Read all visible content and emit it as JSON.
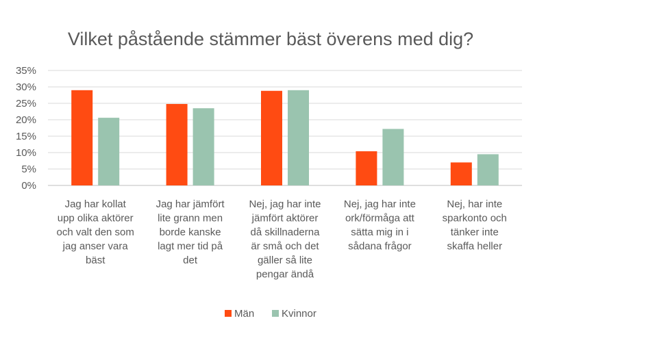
{
  "chart_data": {
    "type": "bar",
    "title": "Vilket påstående stämmer bäst överens med dig?",
    "xlabel": "",
    "ylabel": "",
    "ylim": [
      0,
      35
    ],
    "y_ticks": [
      "0%",
      "5%",
      "10%",
      "15%",
      "20%",
      "25%",
      "30%",
      "35%"
    ],
    "grid": true,
    "legend_position": "bottom",
    "categories": [
      [
        "Jag har kollat",
        "upp olika aktörer",
        "och valt den som",
        "jag anser vara",
        "bäst"
      ],
      [
        "Jag har jämfört",
        "lite grann men",
        "borde kanske",
        "lagt mer tid på",
        "det"
      ],
      [
        "Nej, jag har inte",
        "jämfört aktörer",
        "då skillnaderna",
        "är små och det",
        "gäller så lite",
        "pengar ändå"
      ],
      [
        "Nej, jag har inte",
        "ork/förmåga att",
        "sätta mig in i",
        "sådana frågor"
      ],
      [
        "Nej, har inte",
        "sparkonto och",
        "tänker inte",
        "skaffa heller"
      ]
    ],
    "series": [
      {
        "name": "Män",
        "color": "#FF4B12",
        "values": [
          29,
          24.8,
          28.8,
          10.4,
          7
        ]
      },
      {
        "name": "Kvinnor",
        "color": "#9AC4AF",
        "values": [
          20.6,
          23.5,
          29,
          17.2,
          9.5
        ]
      }
    ]
  }
}
